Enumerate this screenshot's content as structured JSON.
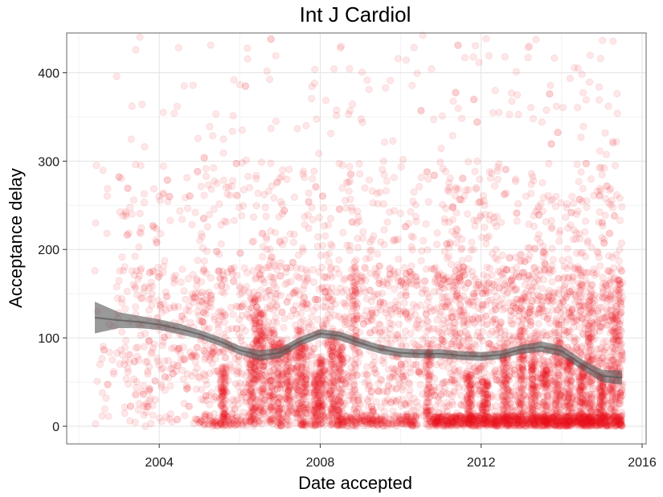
{
  "chart_data": {
    "type": "scatter",
    "title": "Int J Cardiol",
    "xlabel": "Date accepted",
    "ylabel": "Acceptance delay",
    "xlim": [
      2001.7,
      2016.1
    ],
    "ylim": [
      -20,
      445
    ],
    "x_ticks": [
      2004,
      2008,
      2012,
      2016
    ],
    "x_tick_labels": [
      "2004",
      "2008",
      "2012",
      "2016"
    ],
    "y_ticks": [
      0,
      100,
      200,
      300,
      400
    ],
    "y_tick_labels": [
      "0",
      "100",
      "200",
      "300",
      "400"
    ],
    "grid": true,
    "point_color": "#e8101a",
    "point_alpha": 0.1,
    "smooth_color": "#555555",
    "x_range_of_points": [
      2002.4,
      2015.5
    ],
    "smooth_trend": {
      "x": [
        2002.4,
        2003.0,
        2003.5,
        2004.0,
        2004.5,
        2005.0,
        2005.5,
        2006.0,
        2006.5,
        2007.0,
        2007.5,
        2008.0,
        2008.5,
        2009.0,
        2009.5,
        2010.0,
        2010.5,
        2011.0,
        2011.5,
        2012.0,
        2012.5,
        2013.0,
        2013.5,
        2014.0,
        2014.5,
        2015.0,
        2015.5
      ],
      "y": [
        123,
        120,
        118,
        115,
        110,
        104,
        96,
        86,
        80,
        83,
        96,
        105,
        102,
        94,
        87,
        83,
        82,
        82,
        80,
        79,
        81,
        87,
        90,
        85,
        70,
        57,
        55
      ],
      "band_halfwidth": [
        18,
        9,
        7,
        6,
        6,
        5,
        5,
        5,
        6,
        6,
        5,
        5,
        5,
        5,
        5,
        5,
        5,
        5,
        5,
        5,
        5,
        5,
        6,
        6,
        6,
        7,
        8
      ]
    }
  }
}
